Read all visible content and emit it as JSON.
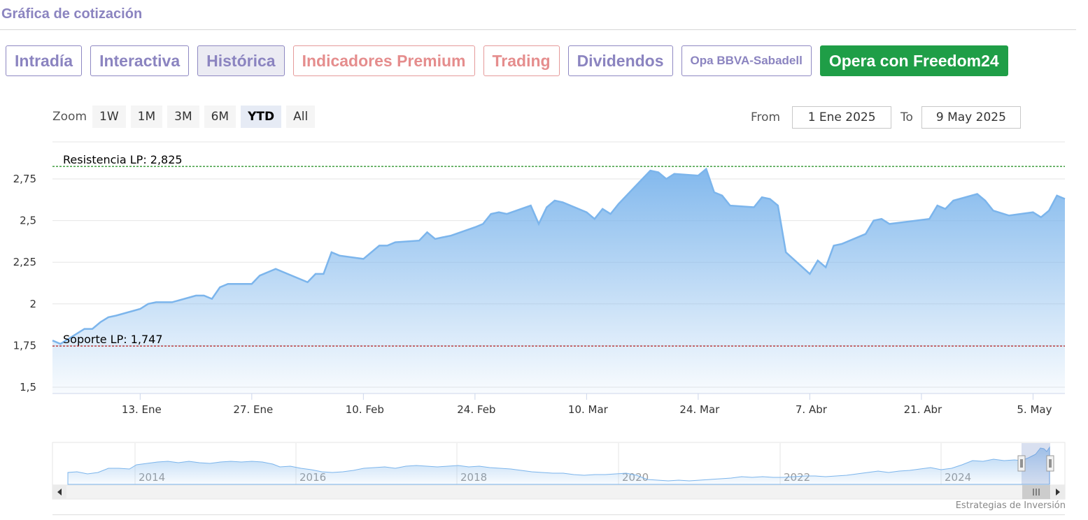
{
  "page_title": "Gráfica de cotización",
  "tabs": [
    {
      "label": "Intradía",
      "style": "purple"
    },
    {
      "label": "Interactiva",
      "style": "purple"
    },
    {
      "label": "Histórica",
      "style": "active"
    },
    {
      "label": "Indicadores Premium",
      "style": "red"
    },
    {
      "label": "Trading",
      "style": "red"
    },
    {
      "label": "Dividendos",
      "style": "purple"
    },
    {
      "label": "Opa BBVA-Sabadell",
      "style": "small"
    },
    {
      "label": "Opera con Freedom24",
      "style": "green"
    }
  ],
  "zoom": {
    "label": "Zoom",
    "buttons": [
      "1W",
      "1M",
      "3M",
      "6M",
      "YTD",
      "All"
    ],
    "selected": "YTD"
  },
  "range": {
    "from_label": "From",
    "from_value": "1 Ene 2025",
    "to_label": "To",
    "to_value": "9 May 2025"
  },
  "credits": "Estrategias de Inversión",
  "colors": {
    "line": "#7cb5ec",
    "resistance": "#1a8a1a",
    "support": "#b52020",
    "tab_purple": "#8b84c0",
    "tab_red": "#e58d8d",
    "tab_green": "#1f9e47"
  },
  "chart_data": {
    "type": "area",
    "title": "",
    "xlabel": "",
    "ylabel": "",
    "y_ticks": [
      "1,5",
      "1,75",
      "2",
      "2,25",
      "2,5",
      "2,75"
    ],
    "y_tick_values": [
      1.5,
      1.75,
      2.0,
      2.25,
      2.5,
      2.75
    ],
    "ylim": [
      1.5,
      2.84
    ],
    "x_ticks": [
      "13. Ene",
      "27. Ene",
      "10. Feb",
      "24. Feb",
      "10. Mar",
      "24. Mar",
      "7. Abr",
      "21. Abr",
      "5. May"
    ],
    "x_tick_values": [
      "2025-01-13",
      "2025-01-27",
      "2025-02-10",
      "2025-02-24",
      "2025-03-10",
      "2025-03-24",
      "2025-04-07",
      "2025-04-21",
      "2025-05-05"
    ],
    "xlim": [
      "2025-01-02",
      "2025-05-09"
    ],
    "plot_lines": [
      {
        "label": "Resistencia LP: 2,825",
        "value": 2.825,
        "color": "#1a8a1a"
      },
      {
        "label": "Soporte LP: 1,747",
        "value": 1.747,
        "color": "#b52020"
      }
    ],
    "series": [
      {
        "x": [
          "2025-01-02",
          "2025-01-03",
          "2025-01-06",
          "2025-01-07",
          "2025-01-08",
          "2025-01-09",
          "2025-01-10",
          "2025-01-13",
          "2025-01-14",
          "2025-01-15",
          "2025-01-16",
          "2025-01-17",
          "2025-01-20",
          "2025-01-21",
          "2025-01-22",
          "2025-01-23",
          "2025-01-24",
          "2025-01-27",
          "2025-01-28",
          "2025-01-29",
          "2025-01-30",
          "2025-01-31",
          "2025-02-03",
          "2025-02-04",
          "2025-02-05",
          "2025-02-06",
          "2025-02-07",
          "2025-02-10",
          "2025-02-11",
          "2025-02-12",
          "2025-02-13",
          "2025-02-14",
          "2025-02-17",
          "2025-02-18",
          "2025-02-19",
          "2025-02-20",
          "2025-02-21",
          "2025-02-24",
          "2025-02-25",
          "2025-02-26",
          "2025-02-27",
          "2025-02-28",
          "2025-03-03",
          "2025-03-04",
          "2025-03-05",
          "2025-03-06",
          "2025-03-07",
          "2025-03-10",
          "2025-03-11",
          "2025-03-12",
          "2025-03-13",
          "2025-03-14",
          "2025-03-17",
          "2025-03-18",
          "2025-03-19",
          "2025-03-20",
          "2025-03-21",
          "2025-03-24",
          "2025-03-25",
          "2025-03-26",
          "2025-03-27",
          "2025-03-28",
          "2025-03-31",
          "2025-04-01",
          "2025-04-02",
          "2025-04-03",
          "2025-04-04",
          "2025-04-07",
          "2025-04-08",
          "2025-04-09",
          "2025-04-10",
          "2025-04-11",
          "2025-04-14",
          "2025-04-15",
          "2025-04-16",
          "2025-04-17",
          "2025-04-22",
          "2025-04-23",
          "2025-04-24",
          "2025-04-25",
          "2025-04-28",
          "2025-04-29",
          "2025-04-30",
          "2025-05-02",
          "2025-05-05",
          "2025-05-06",
          "2025-05-07",
          "2025-05-08",
          "2025-05-09"
        ],
        "values": [
          1.78,
          1.76,
          1.85,
          1.85,
          1.89,
          1.92,
          1.93,
          1.97,
          2.0,
          2.01,
          2.01,
          2.01,
          2.05,
          2.05,
          2.03,
          2.1,
          2.12,
          2.12,
          2.17,
          2.19,
          2.21,
          2.19,
          2.13,
          2.18,
          2.18,
          2.31,
          2.29,
          2.27,
          2.31,
          2.35,
          2.35,
          2.37,
          2.38,
          2.43,
          2.39,
          2.4,
          2.41,
          2.46,
          2.48,
          2.54,
          2.55,
          2.54,
          2.59,
          2.48,
          2.58,
          2.62,
          2.61,
          2.55,
          2.51,
          2.57,
          2.54,
          2.6,
          2.75,
          2.8,
          2.79,
          2.75,
          2.78,
          2.77,
          2.81,
          2.67,
          2.65,
          2.59,
          2.58,
          2.64,
          2.63,
          2.59,
          2.31,
          2.18,
          2.26,
          2.22,
          2.35,
          2.36,
          2.42,
          2.5,
          2.51,
          2.48,
          2.51,
          2.59,
          2.57,
          2.62,
          2.66,
          2.62,
          2.56,
          2.53,
          2.55,
          2.52,
          2.56,
          2.65,
          2.63
        ]
      }
    ],
    "navigator": {
      "x_ticks": [
        "2014",
        "2016",
        "2018",
        "2020",
        "2022",
        "2024"
      ]
    }
  }
}
